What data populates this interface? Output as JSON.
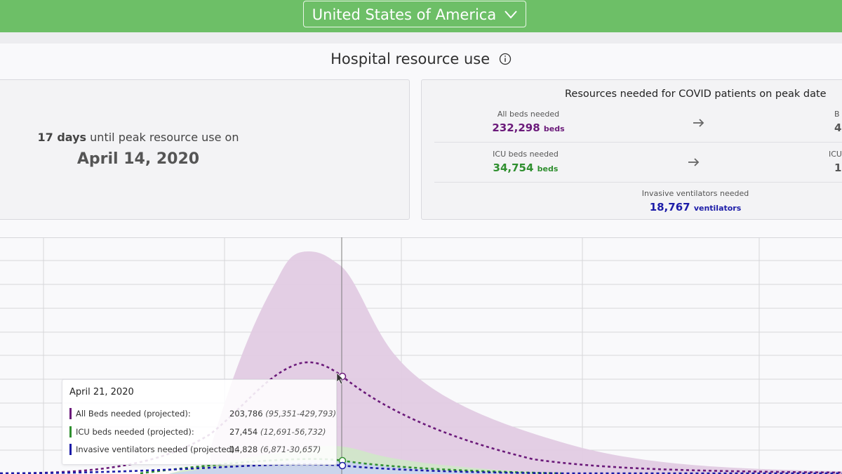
{
  "header": {
    "country": "United States of America"
  },
  "section": {
    "title": "Hospital resource use"
  },
  "peak": {
    "days": "17 days",
    "text": "until peak resource use on",
    "date": "April 14, 2020"
  },
  "resources": {
    "title": "Resources needed for COVID patients on peak date",
    "all_beds": {
      "label": "All beds needed",
      "value": "232,298",
      "unit": "beds",
      "cut_label": "B",
      "cut_value": "4"
    },
    "icu_beds": {
      "label": "ICU beds needed",
      "value": "34,754",
      "unit": "beds",
      "cut_label": "ICU",
      "cut_value": "1"
    },
    "ventilators": {
      "label": "Invasive ventilators needed",
      "value": "18,767",
      "unit": "ventilators"
    }
  },
  "colors": {
    "all_beds": "#6b1a7a",
    "icu": "#2f8f2f",
    "vent": "#1c1ca8",
    "header_green": "#6dbf67"
  },
  "tooltip": {
    "date": "April 21, 2020",
    "rows": [
      {
        "label": "All Beds needed (projected):",
        "value": "203,786",
        "range": "(95,351-429,793)"
      },
      {
        "label": "ICU beds needed (projected):",
        "value": "27,454",
        "range": "(12,691-56,732)"
      },
      {
        "label": "Invasive ventilators needed (projected):",
        "value": "14,828",
        "range": "(6,871-30,657)"
      }
    ]
  }
}
